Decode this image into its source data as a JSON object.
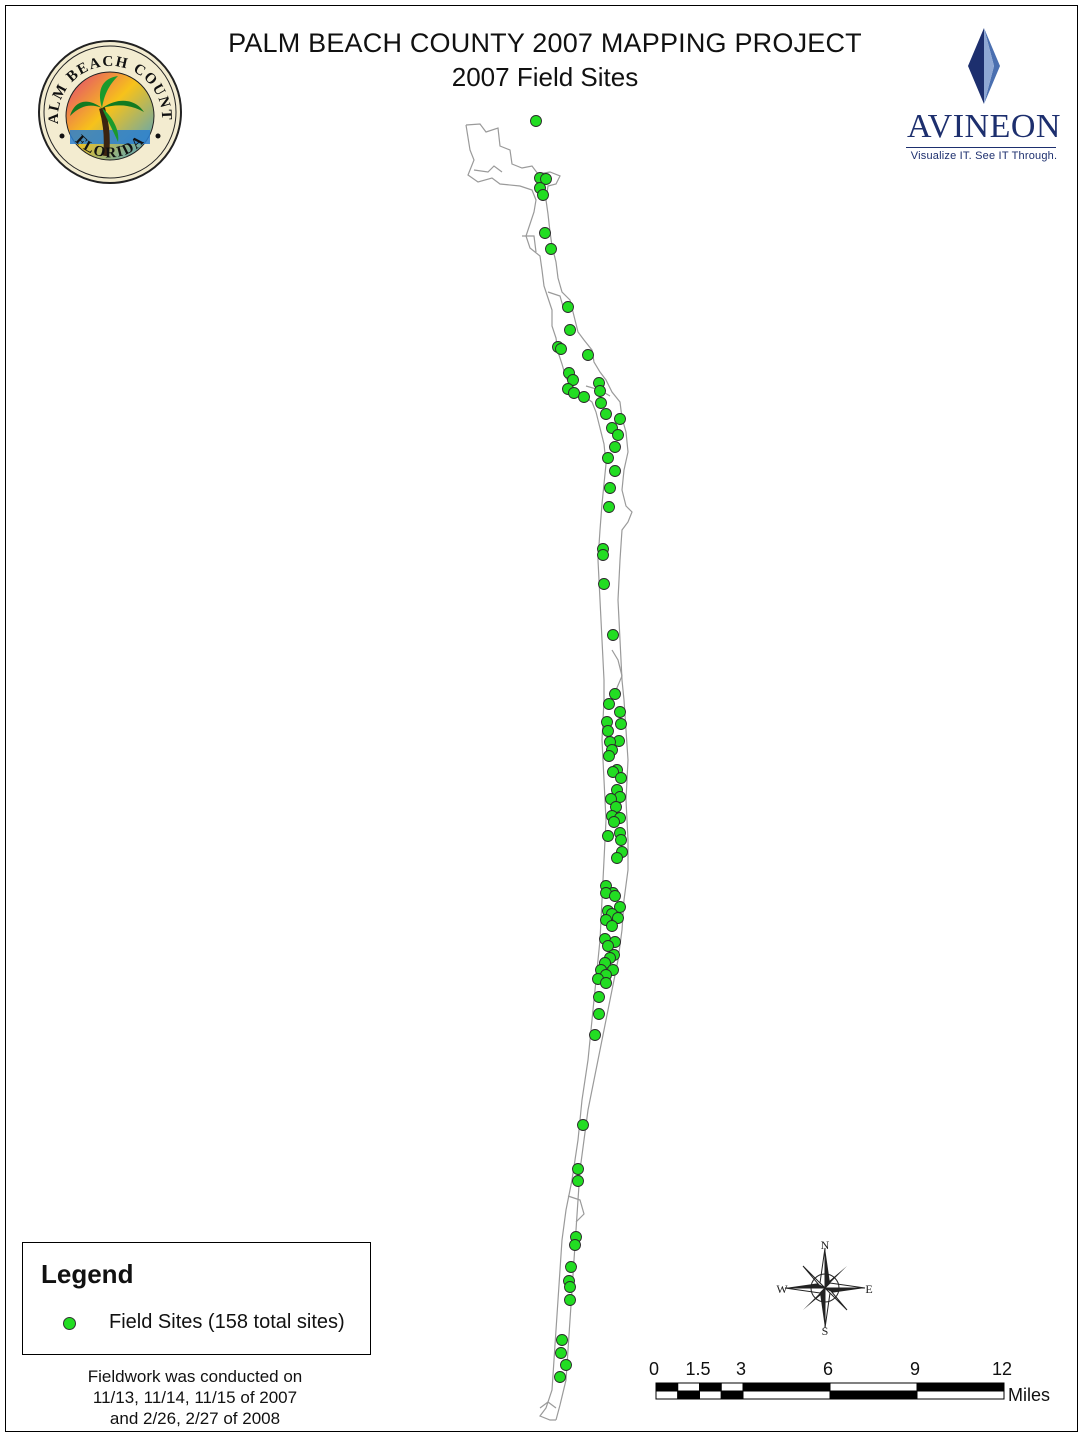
{
  "title": "PALM BEACH COUNTY 2007 MAPPING PROJECT",
  "subtitle": "2007 Field Sites",
  "seal": {
    "top_text": "PALM BEACH COUNTY",
    "bottom_text": "FLORIDA"
  },
  "logo": {
    "brand": "AVINEON",
    "tagline": "Visualize IT. See IT Through.",
    "color": "#1d2f6e"
  },
  "legend": {
    "title": "Legend",
    "item_label": "Field Sites (158 total sites)",
    "point_color": "#22dd22"
  },
  "note": {
    "line1": "Fieldwork was conducted on",
    "line2": "11/13, 11/14, 11/15 of 2007",
    "line3": "and 2/26, 2/27 of 2008"
  },
  "compass": {
    "n": "N",
    "s": "S",
    "e": "E",
    "w": "W"
  },
  "scale_bar": {
    "ticks": [
      "0",
      "1.5",
      "3",
      "6",
      "9",
      "12"
    ],
    "unit": "Miles"
  }
}
